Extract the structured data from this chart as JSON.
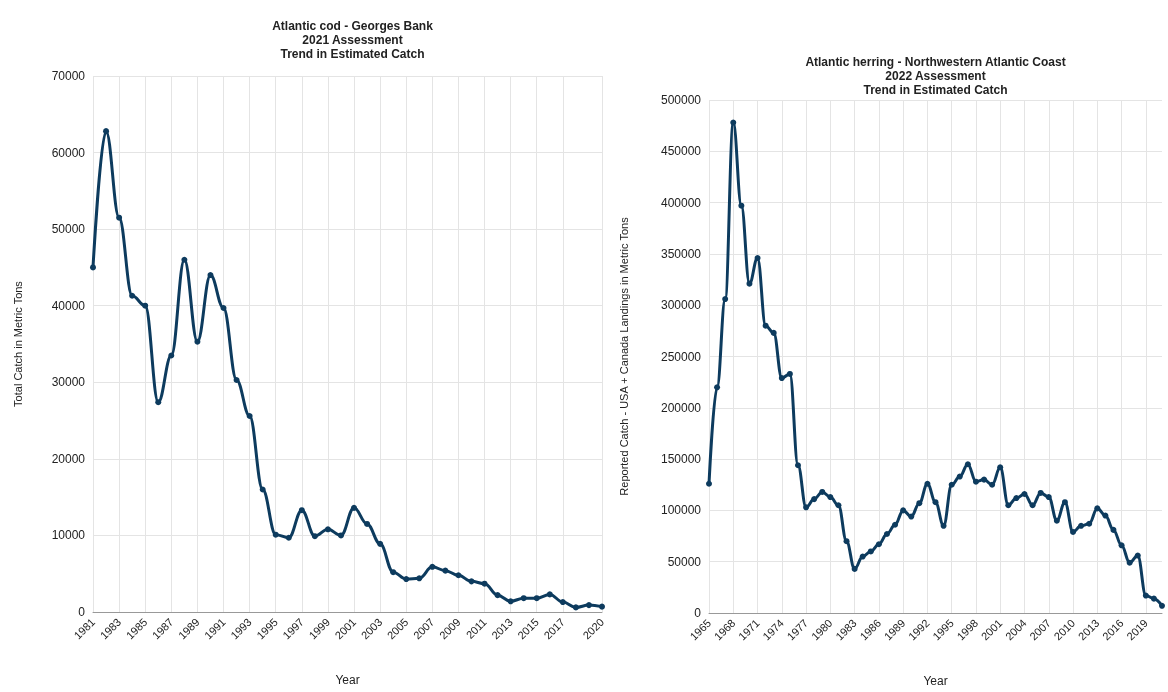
{
  "chart_data": [
    {
      "type": "line",
      "title": "Atlantic cod - Georges Bank\n2021 Assessment\nTrend in Estimated Catch",
      "xlabel": "Year",
      "ylabel": "Total Catch in Metric Tons",
      "categories": [
        "1981",
        null,
        "1983",
        null,
        "1985",
        null,
        "1987",
        null,
        "1989",
        null,
        "1991",
        null,
        "1993",
        null,
        "1995",
        null,
        "1997",
        null,
        "1999",
        null,
        "2001",
        null,
        "2003",
        null,
        "2005",
        null,
        "2007",
        null,
        "2009",
        null,
        "2011",
        null,
        "2013",
        null,
        "2015",
        null,
        "2017",
        null,
        null,
        "2020"
      ],
      "series": [
        {
          "color": "#0d3b5e",
          "values": [
            45000,
            62800,
            51500,
            41300,
            40000,
            27400,
            33500,
            46000,
            35300,
            44000,
            39700,
            30300,
            25600,
            16000,
            10100,
            9700,
            13300,
            9900,
            10800,
            10000,
            13600,
            11500,
            8900,
            5200,
            4300,
            4400,
            5900,
            5400,
            4800,
            4000,
            3700,
            2200,
            1400,
            1800,
            1800,
            2300,
            1300,
            600,
            900,
            700
          ]
        }
      ],
      "ylim": [
        0,
        70000
      ],
      "yticks": [
        0,
        10000,
        20000,
        30000,
        40000,
        50000,
        60000,
        70000
      ],
      "grid": true,
      "marker": "circle",
      "line_style": "solid"
    },
    {
      "type": "line",
      "title": "Atlantic herring - Northwestern Atlantic Coast\n2022 Assessment\nTrend in Estimated Catch",
      "xlabel": "Year",
      "ylabel": "Reported Catch - USA + Canada Landings in Metric Tons",
      "categories": [
        "1965",
        null,
        null,
        "1968",
        null,
        null,
        "1971",
        null,
        null,
        "1974",
        null,
        null,
        "1977",
        null,
        null,
        "1980",
        null,
        null,
        "1983",
        null,
        null,
        "1986",
        null,
        null,
        "1989",
        null,
        null,
        "1992",
        null,
        null,
        "1995",
        null,
        null,
        "1998",
        null,
        null,
        "2001",
        null,
        null,
        "2004",
        null,
        null,
        "2007",
        null,
        null,
        "2010",
        null,
        null,
        "2013",
        null,
        null,
        "2016",
        null,
        null,
        "2019",
        null,
        null
      ],
      "series": [
        {
          "color": "#0d3b5e",
          "values": [
            126000,
            220000,
            306000,
            478000,
            397000,
            321000,
            346000,
            280000,
            273000,
            229000,
            233000,
            144000,
            103000,
            111000,
            118000,
            113000,
            105000,
            70000,
            43000,
            55000,
            60000,
            67000,
            77000,
            86000,
            100000,
            94000,
            107000,
            126000,
            108000,
            85000,
            125000,
            133000,
            145000,
            128000,
            130000,
            125000,
            142000,
            105000,
            112000,
            116000,
            105000,
            117000,
            113000,
            90000,
            108000,
            79000,
            85000,
            87000,
            102000,
            95000,
            81000,
            66000,
            49000,
            56000,
            17000,
            14000,
            7000
          ]
        }
      ],
      "ylim": [
        0,
        500000
      ],
      "yticks": [
        0,
        50000,
        100000,
        150000,
        200000,
        250000,
        300000,
        350000,
        400000,
        450000,
        500000
      ],
      "grid": true,
      "marker": "circle",
      "line_style": "solid"
    }
  ]
}
